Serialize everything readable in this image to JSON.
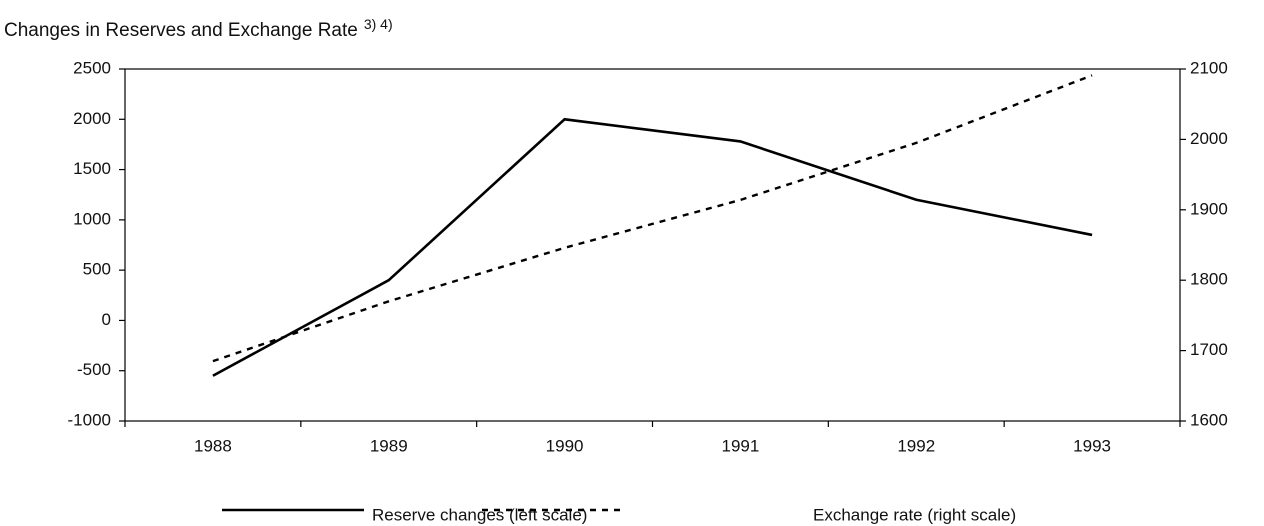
{
  "chart_data": {
    "type": "line",
    "title": "Changes in Reserves and Exchange Rate",
    "title_note": "3) 4)",
    "categories": [
      "1988",
      "1989",
      "1990",
      "1991",
      "1992",
      "1993"
    ],
    "series": [
      {
        "name": "Reserve changes (left scale)",
        "color": "#000000",
        "dash": "solid",
        "values": [
          -550,
          400,
          2000,
          1780,
          1200,
          850
        ]
      },
      {
        "name": "Exchange rate (right scale)",
        "color": "#000000",
        "dash": "dotted",
        "axis": "y2",
        "values": [
          1685,
          1770,
          1846,
          1914,
          1995,
          2091
        ]
      }
    ],
    "ylim": [
      -1000,
      2500
    ],
    "yticks": [
      -1000,
      -500,
      0,
      500,
      1000,
      1500,
      2000,
      2500
    ],
    "y2lim": [
      1600,
      2100
    ],
    "y2ticks": [
      1600,
      1700,
      1800,
      1900,
      2000,
      2100
    ],
    "grid": false,
    "legend": "bottom"
  }
}
